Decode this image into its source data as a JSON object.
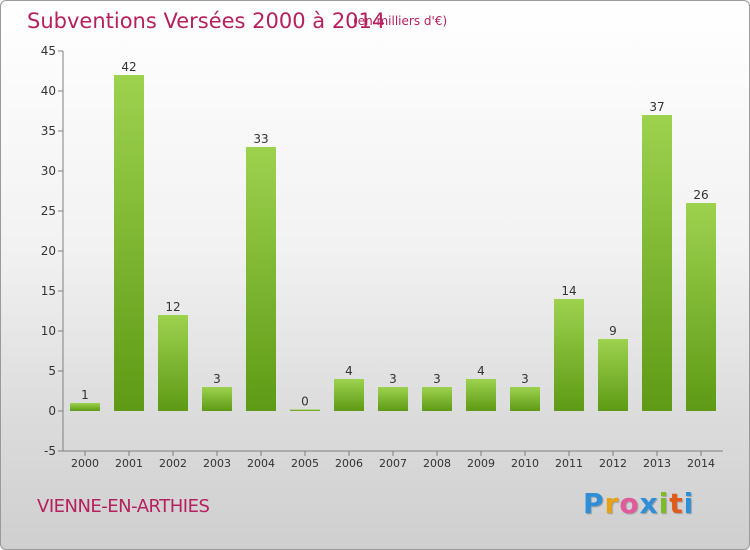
{
  "title": "Subventions Versées 2000 à 2014",
  "subtitle": "(en milliers d'€)",
  "town": "VIENNE-EN-ARTHIES",
  "logo": {
    "letters": [
      "P",
      "r",
      "o",
      "x",
      "i",
      "t",
      "i"
    ],
    "colors": [
      "#2f8fd6",
      "#e8a014",
      "#e05a9c",
      "#2f8fd6",
      "#7cbc29",
      "#e05a1a",
      "#2f8fd6"
    ]
  },
  "chart_data": {
    "type": "bar",
    "categories": [
      "2000",
      "2001",
      "2002",
      "2003",
      "2004",
      "2005",
      "2006",
      "2007",
      "2008",
      "2009",
      "2010",
      "2011",
      "2012",
      "2013",
      "2014"
    ],
    "values": [
      1,
      42,
      12,
      3,
      33,
      0,
      4,
      3,
      3,
      4,
      3,
      14,
      9,
      37,
      26
    ],
    "ylim": [
      -5,
      45
    ],
    "yticks": [
      -5,
      0,
      5,
      10,
      15,
      20,
      25,
      30,
      35,
      40,
      45
    ],
    "grid": false,
    "colors": {
      "bar_light": "#9dd24f",
      "bar_dark": "#5e9a15",
      "axis": "#7f7f7f",
      "text": "#333333"
    }
  }
}
